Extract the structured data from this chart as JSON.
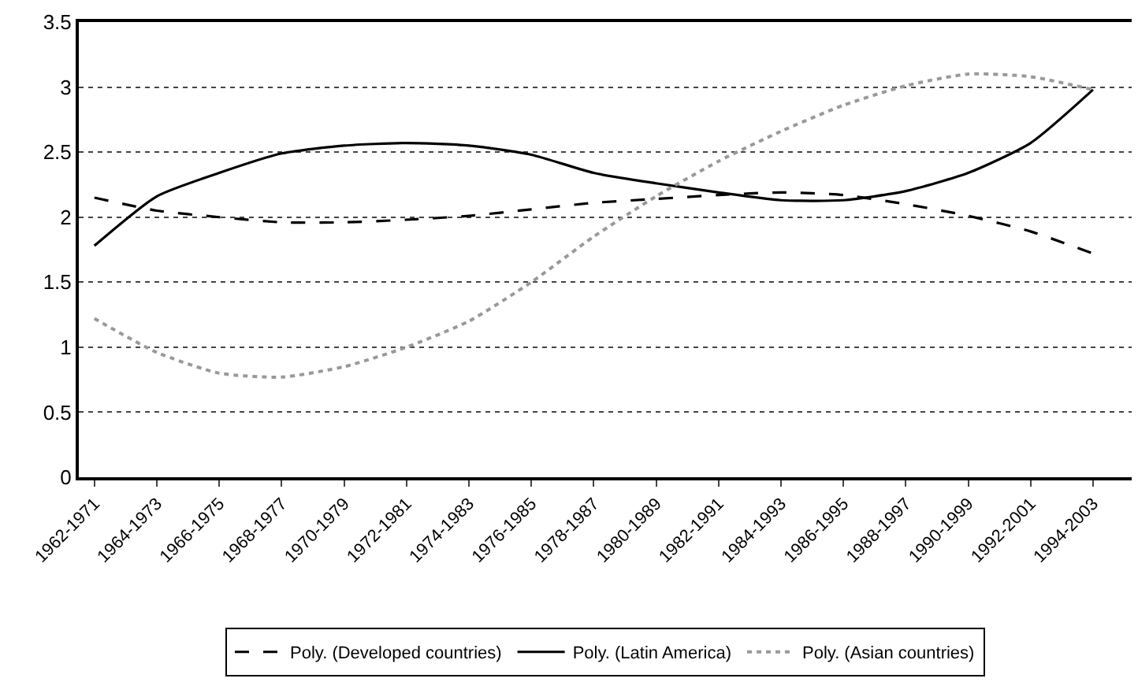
{
  "chart_data": {
    "type": "line",
    "categories": [
      "1962-1971",
      "1964-1973",
      "1966-1975",
      "1968-1977",
      "1970-1979",
      "1972-1981",
      "1974-1983",
      "1976-1985",
      "1978-1987",
      "1980-1989",
      "1982-1991",
      "1984-1993",
      "1986-1995",
      "1988-1997",
      "1990-1999",
      "1992-2001",
      "1994-2003"
    ],
    "series": [
      {
        "name": "Poly. (Developed countries)",
        "color": "#000000",
        "line_style": "dashed",
        "values": [
          2.15,
          2.05,
          2.0,
          1.96,
          1.96,
          1.98,
          2.01,
          2.06,
          2.11,
          2.14,
          2.17,
          2.19,
          2.17,
          2.1,
          2.01,
          1.89,
          1.72
        ]
      },
      {
        "name": "Poly. (Latin America)",
        "color": "#000000",
        "line_style": "solid",
        "values": [
          1.78,
          2.16,
          2.34,
          2.49,
          2.55,
          2.57,
          2.55,
          2.48,
          2.34,
          2.26,
          2.19,
          2.13,
          2.13,
          2.2,
          2.34,
          2.57,
          2.98
        ]
      },
      {
        "name": "Poly. (Asian countries)",
        "color": "#999999",
        "line_style": "dotted",
        "values": [
          1.22,
          0.96,
          0.8,
          0.77,
          0.85,
          1.0,
          1.2,
          1.5,
          1.85,
          2.16,
          2.43,
          2.66,
          2.86,
          3.01,
          3.1,
          3.08,
          2.98
        ]
      }
    ],
    "ylim": [
      0,
      3.5
    ],
    "yticks": [
      0,
      0.5,
      1,
      1.5,
      2,
      2.5,
      3,
      3.5
    ],
    "grid": "y",
    "legend": "bottom",
    "marker": "none"
  }
}
